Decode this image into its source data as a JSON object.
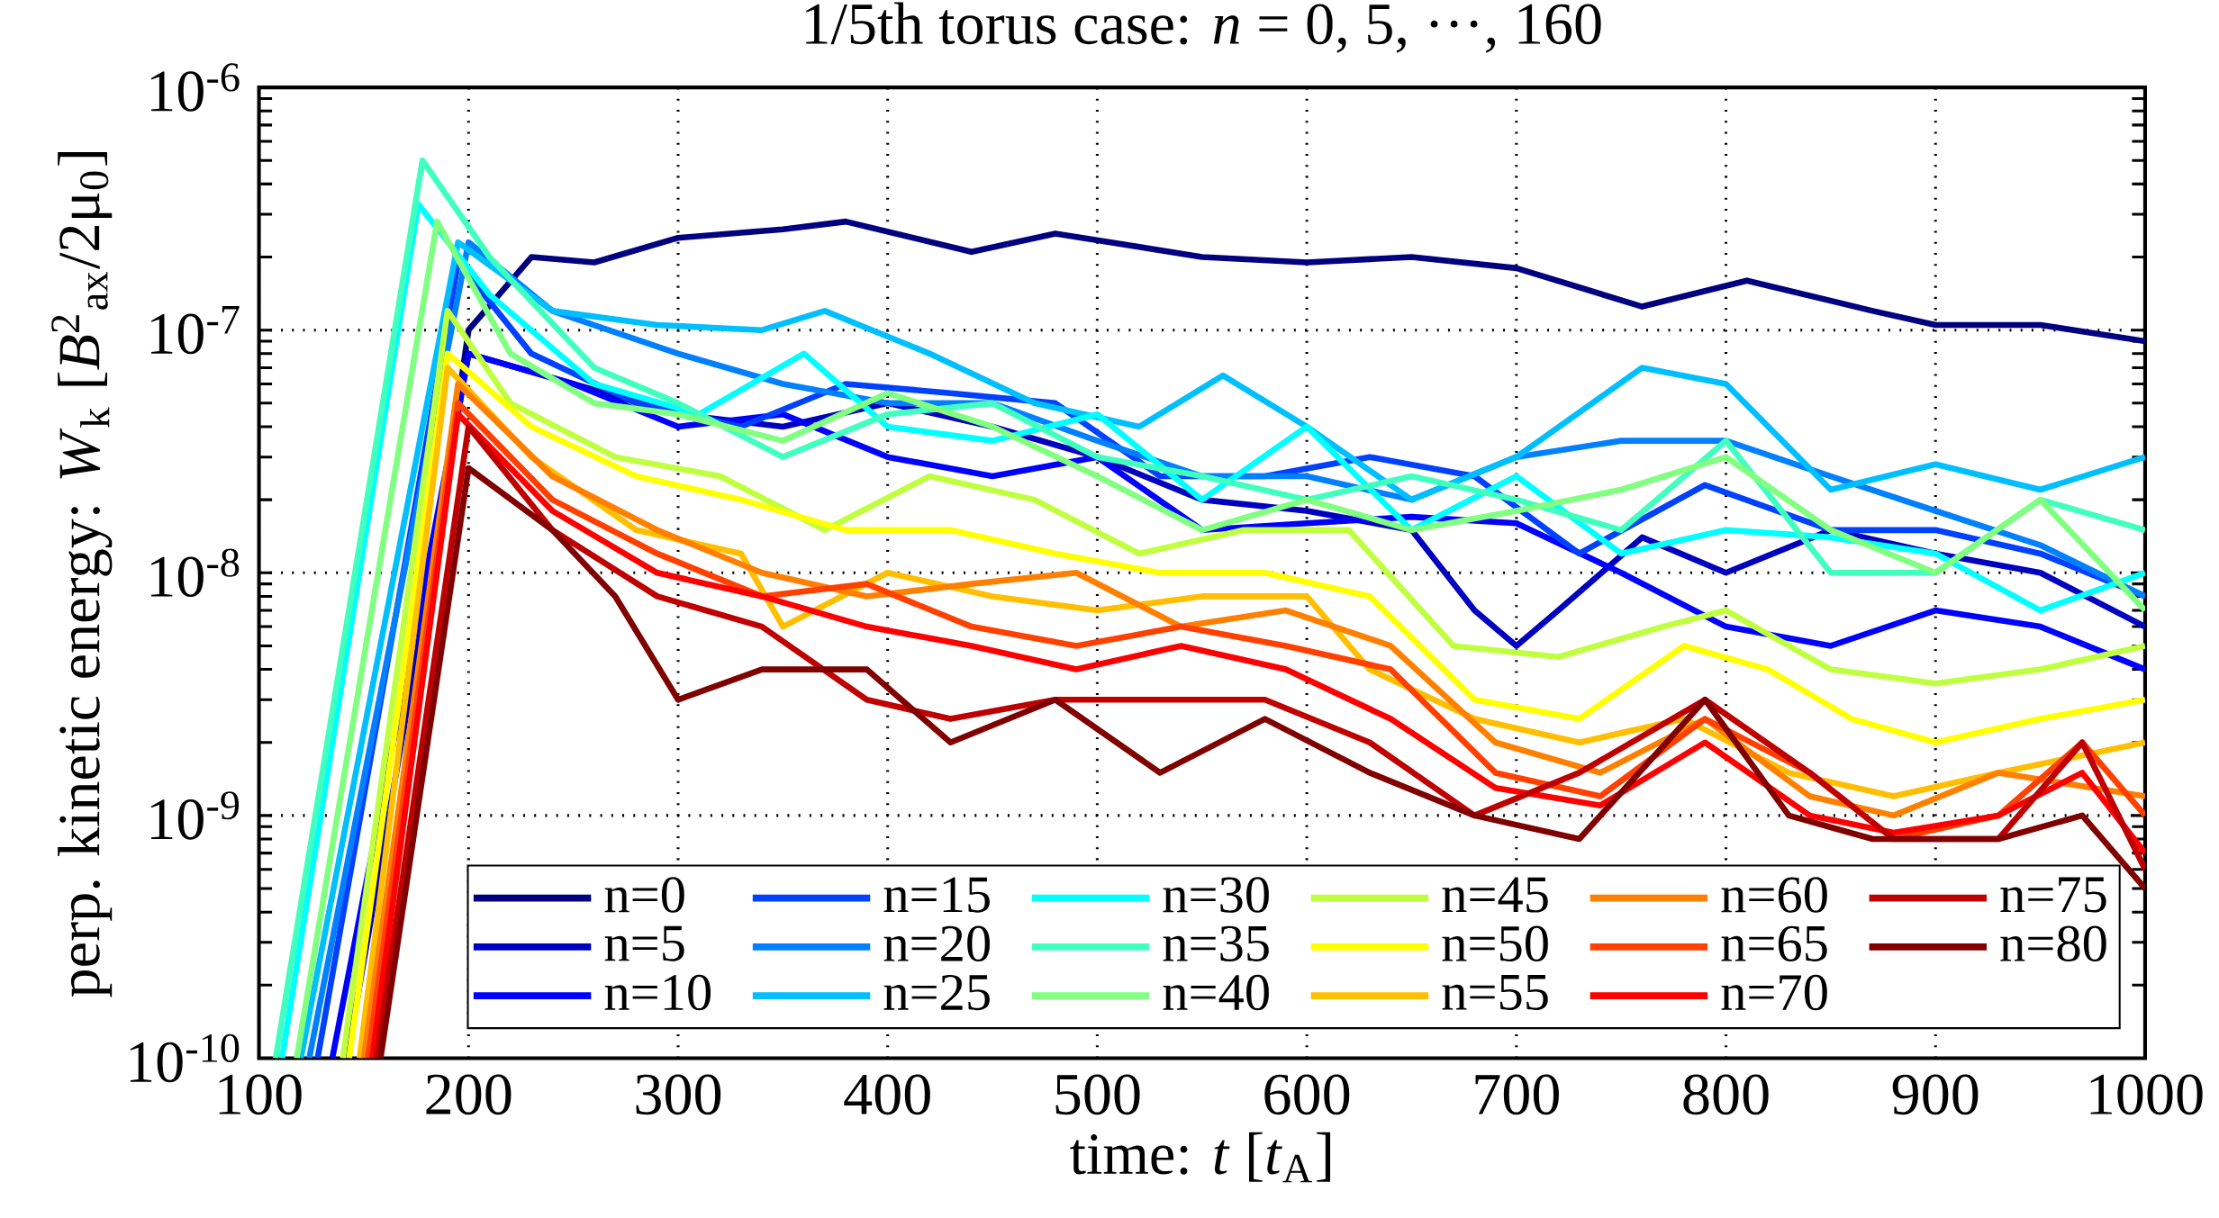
{
  "chart_data": {
    "type": "line",
    "title": "1/5th torus case: *n* = 0, 5, ···, 160",
    "xlabel": "time: *t* [*t*$_{A}$]",
    "ylabel": "perp. kinetic energy: *W*$_{k}$ [*B*$^{2}$$_{ax}$/2μ$_{0}$]",
    "xlim": [
      100,
      1000
    ],
    "ylim": [
      1e-10,
      1e-06
    ],
    "log": "y",
    "grid": true,
    "legend": "bottom",
    "marker": "none",
    "line_style": "solid",
    "xticks": [
      100,
      200,
      300,
      400,
      500,
      600,
      700,
      800,
      900,
      1000
    ],
    "yticks": [
      {
        "value": 1e-10,
        "label": "10$^{-10}$"
      },
      {
        "value": 1e-09,
        "label": "10$^{-9}$"
      },
      {
        "value": 1e-08,
        "label": "10$^{-8}$"
      },
      {
        "value": 1e-07,
        "label": "10$^{-7}$"
      },
      {
        "value": 1e-06,
        "label": "10$^{-6}$"
      }
    ],
    "series": [
      {
        "name": "n=0",
        "color": "#000080",
        "x": [
          150,
          200,
          230,
          260,
          300,
          350,
          380,
          440,
          480,
          550,
          600,
          650,
          700,
          760,
          810,
          870,
          900,
          950,
          1000
        ],
        "values": [
          1e-10,
          1e-07,
          2e-07,
          1.9e-07,
          2.4e-07,
          2.6e-07,
          2.8e-07,
          2.1e-07,
          2.5e-07,
          2e-07,
          1.9e-07,
          2e-07,
          1.8e-07,
          1.25e-07,
          1.6e-07,
          1.2e-07,
          1.05e-07,
          1.05e-07,
          9e-08
        ]
      },
      {
        "name": "n=5",
        "color": "#0000bf",
        "x": [
          142,
          200,
          250,
          300,
          350,
          400,
          450,
          500,
          550,
          600,
          650,
          680,
          700,
          720,
          760,
          800,
          850,
          900,
          950,
          1000
        ],
        "values": [
          1e-10,
          8e-08,
          6e-08,
          4.5e-08,
          4e-08,
          5e-08,
          4e-08,
          3e-08,
          2e-08,
          1.8e-08,
          1.5e-08,
          7e-09,
          5e-09,
          7e-09,
          1.4e-08,
          1e-08,
          1.5e-08,
          1.2e-08,
          1e-08,
          6e-09
        ]
      },
      {
        "name": "n=10",
        "color": "#0000ff",
        "x": [
          135,
          200,
          250,
          300,
          350,
          400,
          450,
          500,
          550,
          600,
          650,
          700,
          750,
          800,
          850,
          900,
          950,
          1000
        ],
        "values": [
          1e-10,
          8e-08,
          6e-08,
          4e-08,
          4.5e-08,
          3e-08,
          2.5e-08,
          3e-08,
          1.5e-08,
          1.6e-08,
          1.7e-08,
          1.6e-08,
          1e-08,
          6e-09,
          5e-09,
          7e-09,
          6e-09,
          4e-09
        ]
      },
      {
        "name": "n=15",
        "color": "#0040ff",
        "x": [
          128,
          195,
          230,
          280,
          330,
          380,
          430,
          480,
          530,
          580,
          630,
          680,
          730,
          790,
          850,
          900,
          950,
          1000
        ],
        "values": [
          1e-10,
          1.9e-07,
          8e-08,
          5e-08,
          4e-08,
          6e-08,
          5.5e-08,
          5e-08,
          2.5e-08,
          2.5e-08,
          3e-08,
          2.5e-08,
          1.2e-08,
          2.3e-08,
          1.5e-08,
          1.5e-08,
          1.2e-08,
          8e-09
        ]
      },
      {
        "name": "n=20",
        "color": "#0080ff",
        "x": [
          124,
          200,
          240,
          300,
          350,
          400,
          450,
          500,
          550,
          600,
          650,
          700,
          750,
          800,
          850,
          900,
          950,
          1000
        ],
        "values": [
          1e-10,
          2.3e-07,
          1.2e-07,
          8e-08,
          6e-08,
          5e-08,
          5e-08,
          3.5e-08,
          2.5e-08,
          2.5e-08,
          2e-08,
          3e-08,
          3.5e-08,
          3.5e-08,
          2.5e-08,
          1.8e-08,
          1.3e-08,
          8e-09
        ]
      },
      {
        "name": "n=25",
        "color": "#00bfff",
        "x": [
          120,
          195,
          240,
          290,
          340,
          370,
          420,
          470,
          520,
          560,
          600,
          650,
          700,
          760,
          800,
          850,
          900,
          950,
          1000
        ],
        "values": [
          1e-10,
          2.3e-07,
          1.2e-07,
          1.05e-07,
          1e-07,
          1.2e-07,
          8e-08,
          5e-08,
          4e-08,
          6.5e-08,
          4e-08,
          2e-08,
          3e-08,
          7e-08,
          6e-08,
          2.2e-08,
          2.8e-08,
          2.2e-08,
          3e-08
        ]
      },
      {
        "name": "n=30",
        "color": "#00ffff",
        "x": [
          111,
          176,
          210,
          260,
          310,
          360,
          400,
          450,
          500,
          550,
          600,
          650,
          700,
          750,
          800,
          850,
          900,
          950,
          1000
        ],
        "values": [
          1e-10,
          3.3e-07,
          1.4e-07,
          6e-08,
          4.5e-08,
          8e-08,
          4e-08,
          3.5e-08,
          4.5e-08,
          2e-08,
          4e-08,
          1.5e-08,
          2.5e-08,
          1.2e-08,
          1.5e-08,
          1.4e-08,
          1.2e-08,
          7e-09,
          1e-08
        ]
      },
      {
        "name": "n=35",
        "color": "#40ffbf",
        "x": [
          108,
          178,
          210,
          260,
          300,
          350,
          400,
          450,
          500,
          550,
          600,
          650,
          700,
          750,
          800,
          850,
          900,
          950,
          1000
        ],
        "values": [
          1e-10,
          5e-07,
          2e-07,
          7e-08,
          5e-08,
          3e-08,
          4.5e-08,
          5e-08,
          3e-08,
          2.5e-08,
          2e-08,
          2.5e-08,
          2e-08,
          1.5e-08,
          3.5e-08,
          1e-08,
          1e-08,
          2e-08,
          1.5e-08
        ]
      },
      {
        "name": "n=40",
        "color": "#80ff80",
        "x": [
          118,
          185,
          220,
          260,
          300,
          350,
          400,
          450,
          500,
          550,
          600,
          650,
          700,
          750,
          800,
          850,
          900,
          950,
          1000
        ],
        "values": [
          1e-10,
          2.8e-07,
          8e-08,
          5e-08,
          4.5e-08,
          3.5e-08,
          5.5e-08,
          4e-08,
          2.5e-08,
          1.5e-08,
          2e-08,
          1.5e-08,
          1.8e-08,
          2.2e-08,
          3e-08,
          1.5e-08,
          1e-08,
          2e-08,
          7e-09
        ]
      },
      {
        "name": "n=45",
        "color": "#bfff40",
        "x": [
          140,
          190,
          220,
          270,
          320,
          370,
          420,
          470,
          520,
          570,
          620,
          670,
          720,
          770,
          800,
          850,
          900,
          950,
          1000
        ],
        "values": [
          1e-10,
          1.2e-07,
          5e-08,
          3e-08,
          2.5e-08,
          1.5e-08,
          2.5e-08,
          2e-08,
          1.2e-08,
          1.5e-08,
          1.5e-08,
          5e-09,
          4.5e-09,
          6e-09,
          7e-09,
          4e-09,
          3.5e-09,
          4e-09,
          5e-09
        ]
      },
      {
        "name": "n=50",
        "color": "#ffff00",
        "x": [
          143,
          190,
          230,
          280,
          330,
          380,
          430,
          480,
          530,
          580,
          630,
          680,
          730,
          780,
          820,
          860,
          900,
          950,
          1000
        ],
        "values": [
          1e-10,
          8e-08,
          4e-08,
          2.5e-08,
          2e-08,
          1.5e-08,
          1.5e-08,
          1.2e-08,
          1e-08,
          1e-08,
          8e-09,
          3e-09,
          2.5e-09,
          5e-09,
          4e-09,
          2.5e-09,
          2e-09,
          2.5e-09,
          3e-09
        ]
      },
      {
        "name": "n=55",
        "color": "#ffbf00",
        "x": [
          148,
          190,
          230,
          280,
          330,
          350,
          400,
          450,
          500,
          550,
          600,
          630,
          680,
          730,
          780,
          830,
          880,
          930,
          1000
        ],
        "values": [
          1e-10,
          7e-08,
          3e-08,
          1.5e-08,
          1.2e-08,
          6e-09,
          1e-08,
          8e-09,
          7e-09,
          8e-09,
          8e-09,
          4e-09,
          2.5e-09,
          2e-09,
          2.5e-09,
          1.5e-09,
          1.2e-09,
          1.5e-09,
          2e-09
        ]
      },
      {
        "name": "n=60",
        "color": "#ff8000",
        "x": [
          150,
          195,
          240,
          290,
          340,
          390,
          440,
          490,
          540,
          590,
          640,
          690,
          740,
          790,
          840,
          880,
          930,
          1000
        ],
        "values": [
          1e-10,
          6e-08,
          2.5e-08,
          1.5e-08,
          1e-08,
          8e-09,
          9e-09,
          1e-08,
          6e-09,
          7e-09,
          5e-09,
          2e-09,
          1.5e-09,
          2.5e-09,
          1.2e-09,
          1e-09,
          1.5e-09,
          1.2e-09
        ]
      },
      {
        "name": "n=65",
        "color": "#ff4000",
        "x": [
          152,
          195,
          240,
          290,
          340,
          390,
          440,
          490,
          540,
          590,
          640,
          690,
          740,
          790,
          840,
          880,
          930,
          970,
          1000
        ],
        "values": [
          1e-10,
          5e-08,
          2e-08,
          1.2e-08,
          8e-09,
          9e-09,
          6e-09,
          5e-09,
          6e-09,
          5e-09,
          4e-09,
          1.5e-09,
          1.2e-09,
          2.5e-09,
          1.5e-09,
          8e-10,
          1e-09,
          2e-09,
          1e-09
        ]
      },
      {
        "name": "n=70",
        "color": "#ff0000",
        "x": [
          154,
          195,
          240,
          290,
          340,
          390,
          440,
          490,
          540,
          590,
          640,
          690,
          740,
          790,
          840,
          880,
          930,
          970,
          1000
        ],
        "values": [
          1e-10,
          4.5e-08,
          1.8e-08,
          1e-08,
          8e-09,
          6e-09,
          5e-09,
          4e-09,
          5e-09,
          4e-09,
          2.5e-09,
          1.3e-09,
          1.1e-09,
          2e-09,
          1e-09,
          8.5e-10,
          1e-09,
          1.5e-09,
          7e-10
        ]
      },
      {
        "name": "n=75",
        "color": "#bf0000",
        "x": [
          156,
          200,
          240,
          290,
          340,
          390,
          430,
          480,
          530,
          580,
          630,
          680,
          730,
          790,
          840,
          880,
          930,
          970,
          1000
        ],
        "values": [
          1e-10,
          4e-08,
          1.5e-08,
          8e-09,
          6e-09,
          3e-09,
          2.5e-09,
          3e-09,
          3e-09,
          3e-09,
          2e-09,
          1e-09,
          1.5e-09,
          3e-09,
          1.5e-09,
          8e-10,
          8e-10,
          2e-09,
          6e-10
        ]
      },
      {
        "name": "n=80",
        "color": "#800000",
        "x": [
          158,
          200,
          240,
          270,
          300,
          340,
          390,
          430,
          480,
          530,
          580,
          630,
          680,
          730,
          790,
          830,
          870,
          930,
          970,
          1000
        ],
        "values": [
          1e-10,
          2.7e-08,
          1.5e-08,
          8e-09,
          3e-09,
          4e-09,
          4e-09,
          2e-09,
          3e-09,
          1.5e-09,
          2.5e-09,
          1.5e-09,
          1e-09,
          8e-10,
          3e-09,
          1e-09,
          8e-10,
          8e-10,
          1e-09,
          5e-10
        ]
      }
    ]
  }
}
